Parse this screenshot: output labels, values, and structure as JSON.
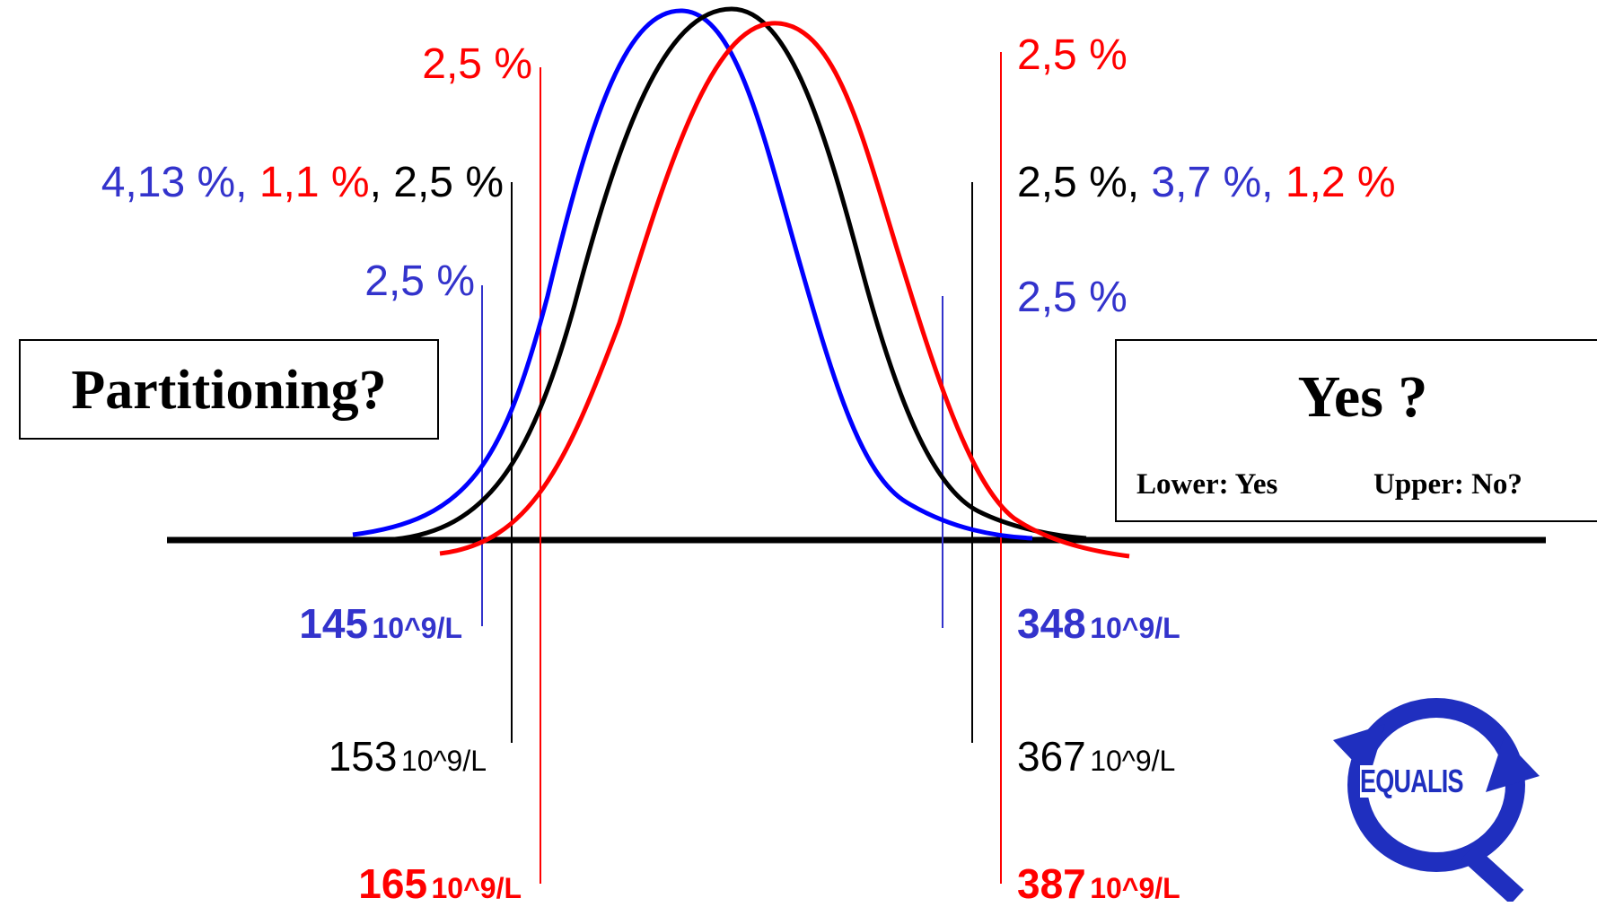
{
  "colors": {
    "blue": "#3333cc",
    "black": "#000000",
    "red": "#ff0000"
  },
  "labels": {
    "left_red_pct": "2,5 %",
    "left_combo": [
      {
        "text": "4,13 %",
        "color": "blue"
      },
      {
        "text": ", ",
        "color": "blue"
      },
      {
        "text": "1,1 %",
        "color": "red"
      },
      {
        "text": ", 2,5 %",
        "color": "black"
      }
    ],
    "left_blue_pct": "2,5 %",
    "right_red_pct": "2,5 %",
    "right_combo": [
      {
        "text": "2,5 %",
        "color": "black"
      },
      {
        "text": ", ",
        "color": "black"
      },
      {
        "text": "3,7 %",
        "color": "blue"
      },
      {
        "text": ", ",
        "color": "blue"
      },
      {
        "text": "1,2 %",
        "color": "red"
      }
    ],
    "right_blue_pct": "2,5 %"
  },
  "partitioning_box": {
    "text": "Partitioning?"
  },
  "yes_box": {
    "title": "Yes ?",
    "lower": "Lower: Yes",
    "upper": "Upper: No?"
  },
  "limits": {
    "blue_low": {
      "value": "145",
      "unit": "10^9/L"
    },
    "black_low": {
      "value": "153",
      "unit": "10^9/L"
    },
    "red_low": {
      "value": "165",
      "unit": "10^9/L"
    },
    "blue_high": {
      "value": "348",
      "unit": "10^9/L"
    },
    "black_high": {
      "value": "367",
      "unit": "10^9/L"
    },
    "red_high": {
      "value": "387",
      "unit": "10^9/L"
    }
  },
  "logo": {
    "text": "EQUALIS"
  }
}
